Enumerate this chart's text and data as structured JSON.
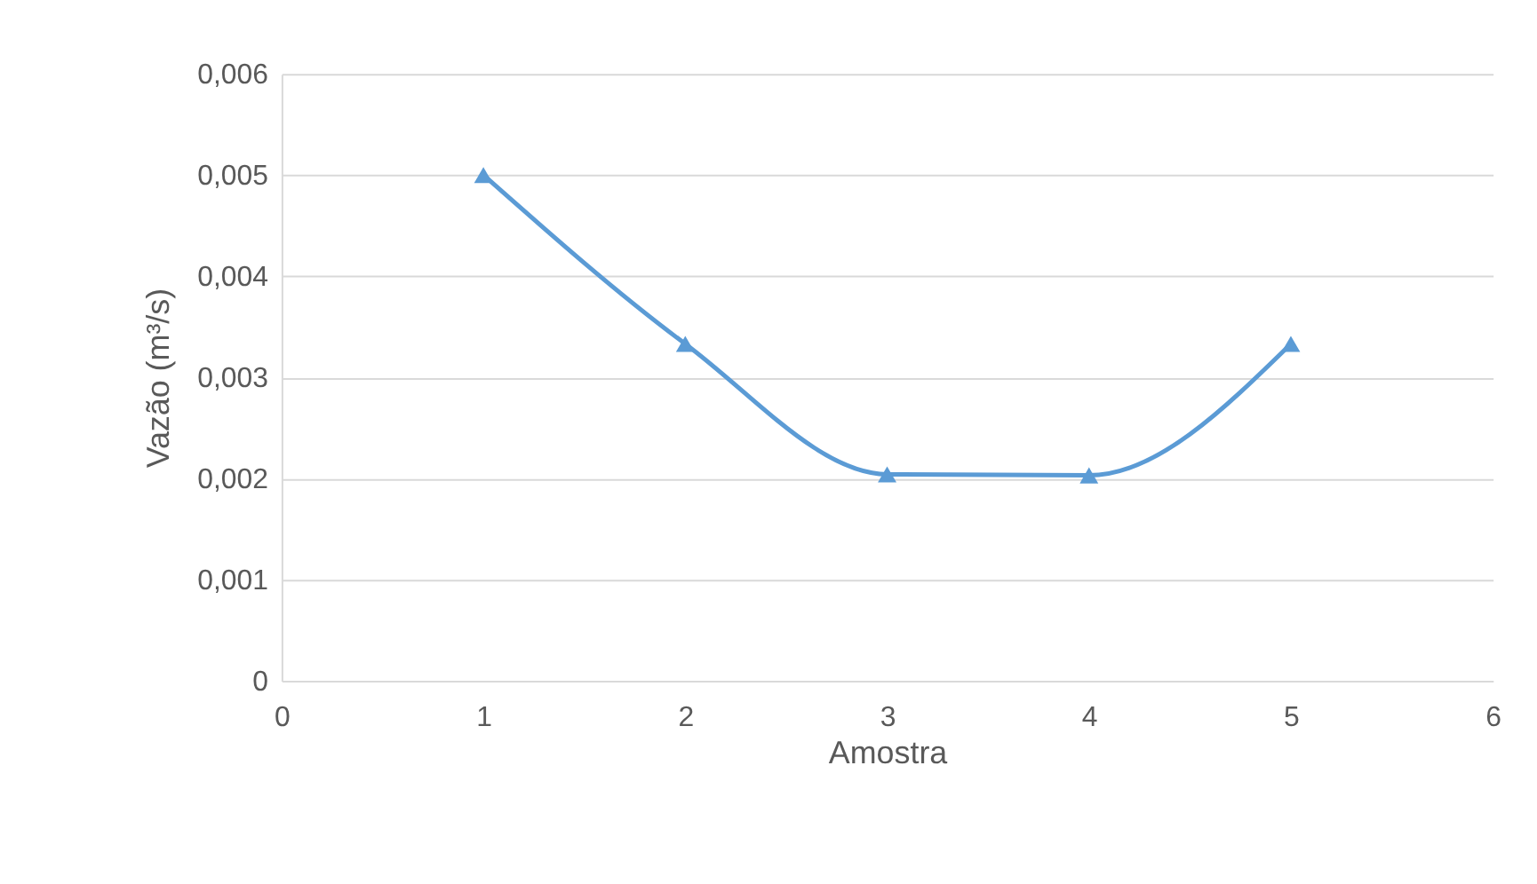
{
  "chart_data": {
    "type": "line",
    "xlabel": "Amostra",
    "ylabel": "Vazão (m³/s)",
    "x": [
      1,
      2,
      3,
      4,
      5
    ],
    "series": [
      {
        "color": "#5b9bd5",
        "values": [
          0.005,
          0.00333,
          0.00204,
          0.00203,
          0.00333
        ]
      }
    ],
    "xlim": [
      0,
      6
    ],
    "xticks": [
      0,
      1,
      2,
      3,
      4,
      5,
      6
    ],
    "ylim": [
      0,
      0.006
    ],
    "yticks": [
      0,
      {
        "value": 0.001,
        "label": "0,001"
      },
      {
        "value": 0.002,
        "label": "0,002"
      },
      {
        "value": 0.003,
        "label": "0,003"
      },
      {
        "value": 0.004,
        "label": "0,004"
      },
      {
        "value": 0.005,
        "label": "0,005"
      },
      {
        "value": 0.006,
        "label": "0,006"
      }
    ],
    "grid": "y",
    "marker": "triangle",
    "line_style": "solid"
  }
}
